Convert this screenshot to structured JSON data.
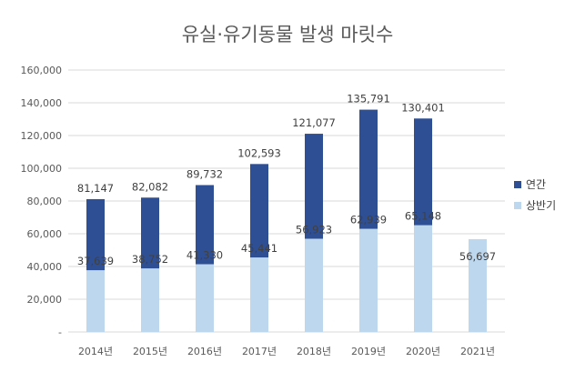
{
  "chart_data": {
    "type": "bar",
    "title": "유실·유기동물 발생 마릿수",
    "categories": [
      "2014년",
      "2015년",
      "2016년",
      "2017년",
      "2018년",
      "2019년",
      "2020년",
      "2021년"
    ],
    "series": [
      {
        "name": "연간",
        "color": "#2f4f94",
        "values": [
          81147,
          82082,
          89732,
          102593,
          121077,
          135791,
          130401,
          null
        ],
        "labels": [
          "81,147",
          "82,082",
          "89,732",
          "102,593",
          "121,077",
          "135,791",
          "130,401",
          ""
        ]
      },
      {
        "name": "상반기",
        "color": "#bdd7ee",
        "values": [
          37639,
          38752,
          41330,
          45441,
          56923,
          62939,
          65148,
          56697
        ],
        "labels": [
          "37,639",
          "38,752",
          "41,330",
          "45,441",
          "56,923",
          "62,939",
          "65,148",
          "56,697"
        ]
      }
    ],
    "yticks": [
      "-",
      "20,000",
      "40,000",
      "60,000",
      "80,000",
      "100,000",
      "120,000",
      "140,000",
      "160,000"
    ],
    "ylim": [
      0,
      160000
    ],
    "grid": true,
    "legend": "right"
  }
}
